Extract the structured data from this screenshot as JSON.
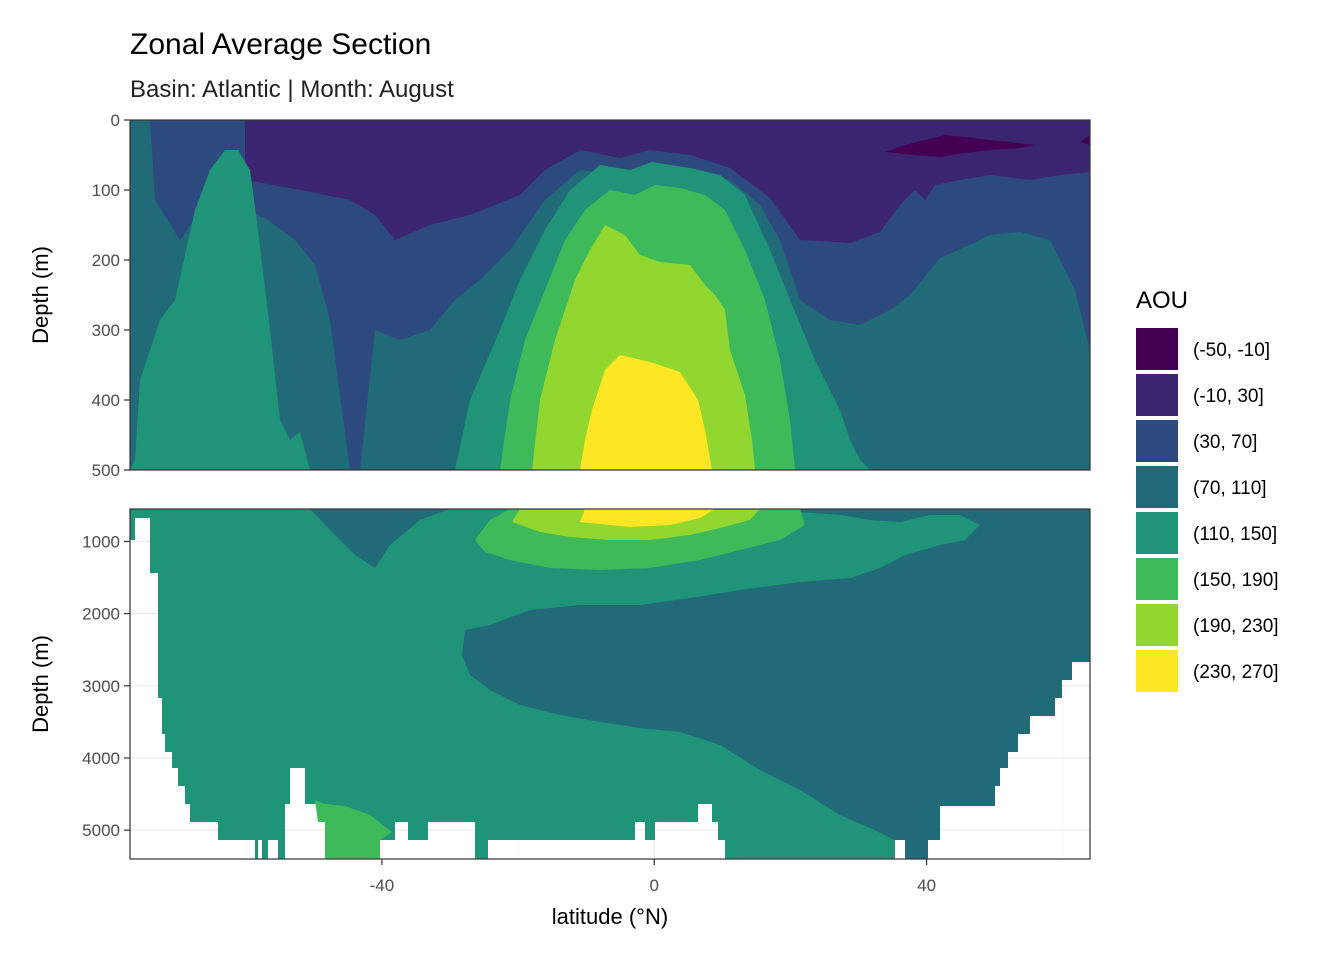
{
  "chart_data": {
    "type": "heatmap",
    "title": "Zonal Average Section",
    "subtitle": "Basin: Atlantic | Month: August",
    "xlabel": "latitude (°N)",
    "ylabel": "Depth (m)",
    "x_ticks": [
      -40,
      0,
      40
    ],
    "xlim": [
      -77,
      64
    ],
    "panels": [
      {
        "name": "upper",
        "ylim": [
          0,
          500
        ],
        "y_ticks": [
          "0",
          "100",
          "200",
          "300",
          "400",
          "500"
        ],
        "y_tick_values": [
          0,
          100,
          200,
          300,
          400,
          500
        ]
      },
      {
        "name": "lower",
        "ylim": [
          550,
          5400
        ],
        "y_ticks": [
          "1000",
          "2000",
          "3000",
          "4000",
          "5000"
        ],
        "y_tick_values": [
          1000,
          2000,
          3000,
          4000,
          5000
        ]
      }
    ],
    "legend": {
      "title": "AOU",
      "position": "right",
      "bins": [
        {
          "label": "(-50, -10]",
          "color": "#440154"
        },
        {
          "label": "(-10, 30]",
          "color": "#3b2570"
        },
        {
          "label": "(30, 70]",
          "color": "#2c4a7e"
        },
        {
          "label": "(70, 110]",
          "color": "#216a78"
        },
        {
          "label": "(110, 150]",
          "color": "#1f9479"
        },
        {
          "label": "(150, 190]",
          "color": "#3fba5a"
        },
        {
          "label": "(190, 230]",
          "color": "#92d630"
        },
        {
          "label": "(230, 270]",
          "color": "#fde725"
        }
      ]
    }
  }
}
